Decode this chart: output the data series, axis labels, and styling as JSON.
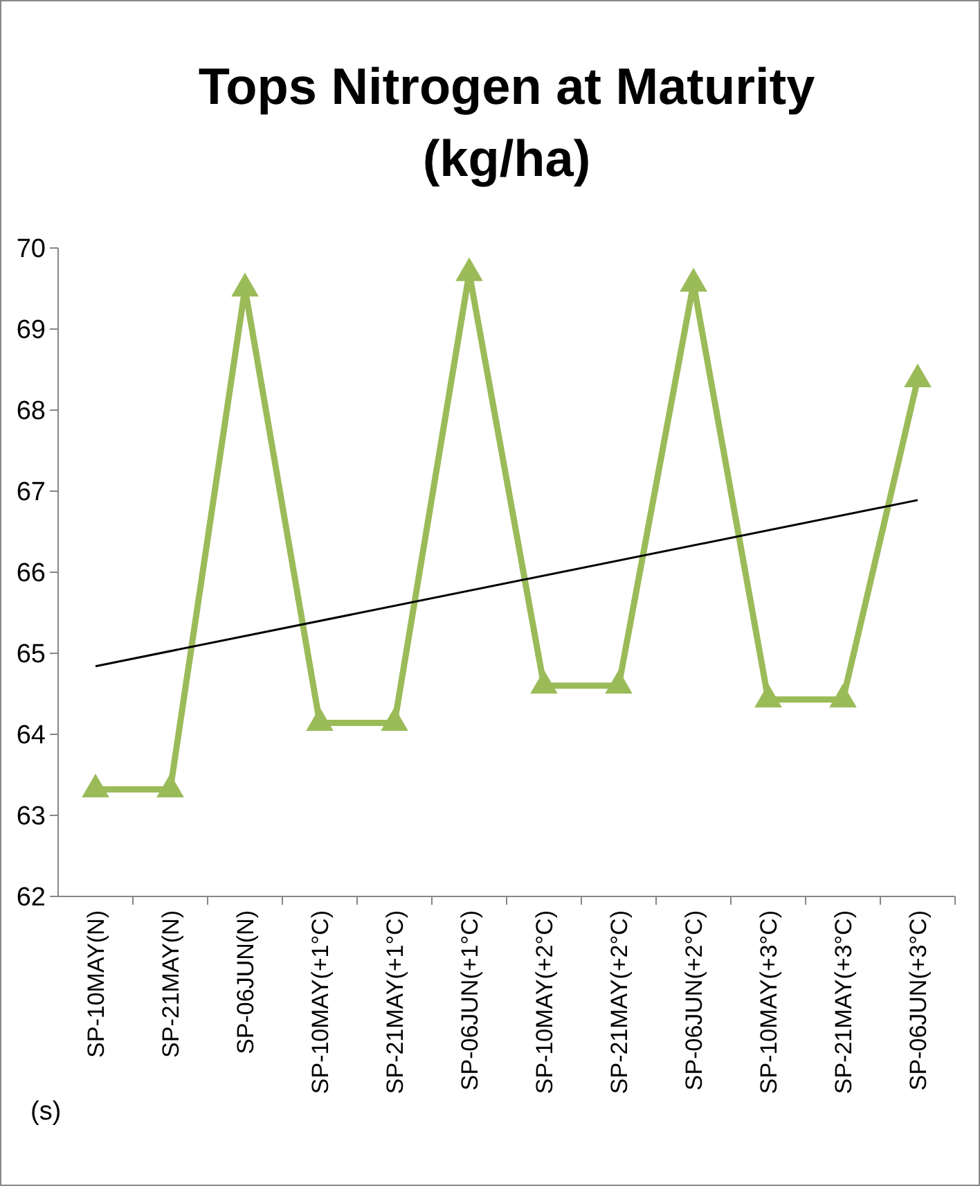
{
  "chart_data": {
    "type": "line",
    "title": "Tops Nitrogen at Maturity (kg/ha)",
    "categories": [
      "SP-10MAY(N)",
      "SP-21MAY(N)",
      "SP-06JUN(N)",
      "SP-10MAY(+1°C)",
      "SP-21MAY(+1°C)",
      "SP-06JUN(+1°C)",
      "SP-10MAY(+2°C)",
      "SP-21MAY(+2°C)",
      "SP-06JUN(+2°C)",
      "SP-10MAY(+3°C)",
      "SP-21MAY(+3°C)",
      "SP-06JUN(+3°C)"
    ],
    "series": [
      {
        "color": "#9bbb59",
        "values": [
          63.32,
          63.32,
          69.5,
          64.14,
          64.14,
          69.69,
          64.6,
          64.6,
          69.56,
          64.43,
          64.43,
          68.38
        ],
        "marker": "triangle"
      },
      {
        "type": "line",
        "color": "#000000",
        "x": [
          "SP-10MAY(N)",
          "SP-06JUN(+3°C)"
        ],
        "values": [
          64.84,
          66.89
        ],
        "marker": "none"
      }
    ],
    "ylim": [
      62,
      70
    ],
    "yticks": [
      62,
      63,
      64,
      65,
      66,
      67,
      68,
      69,
      70
    ],
    "grid": false,
    "annotations": [
      "(s)"
    ]
  }
}
